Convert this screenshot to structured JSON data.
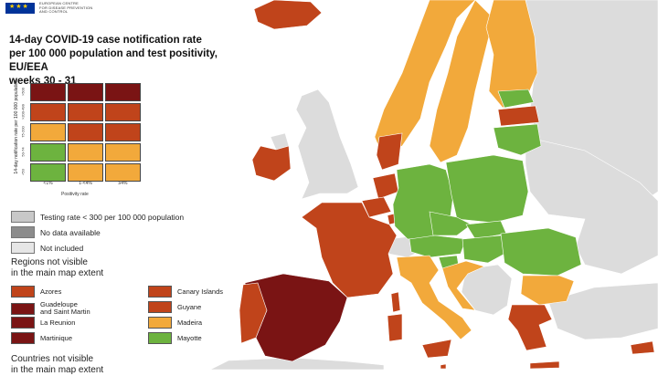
{
  "header": {
    "org_lines": [
      "EUROPEAN CENTRE",
      "FOR DISEASE PREVENTION",
      "AND CONTROL"
    ],
    "title_lines": [
      "14-day COVID-19 case notification rate",
      "per 100 000 population and test positivity, EU/EEA",
      "weeks 30 - 31"
    ]
  },
  "colors": {
    "dark_red": "#7a1414",
    "red": "#c0441b",
    "orange": "#f2a93b",
    "green": "#6db33f",
    "grey_testing": "#c8c8c8",
    "grey_nodata": "#8c8c8c",
    "grey_notincluded": "#e6e6e6",
    "sea": "#ffffff",
    "non_eu": "#dcdcdc"
  },
  "matrix": {
    "y_axis_label": "14-day notification rate per 100 000 population",
    "row_labels": [
      ">500",
      ">200-499",
      "75-200",
      "50-74",
      "<50"
    ],
    "col_labels": [
      "<1%",
      "1-<4%",
      "≥4%"
    ],
    "x_axis_label": "Positivity rate",
    "cells": [
      [
        "dark_red",
        "dark_red",
        "dark_red"
      ],
      [
        "red",
        "red",
        "red"
      ],
      [
        "orange",
        "red",
        "red"
      ],
      [
        "green",
        "orange",
        "orange"
      ],
      [
        "green",
        "orange",
        "orange"
      ]
    ]
  },
  "legend": [
    {
      "label": "Testing rate < 300 per 100 000 population",
      "color": "grey_testing"
    },
    {
      "label": "No data available",
      "color": "grey_nodata"
    },
    {
      "label": "Not included",
      "color": "grey_notincluded"
    }
  ],
  "regions_heading": "Regions not visible\nin the main map extent",
  "regions": [
    {
      "label": "Azores",
      "color": "red"
    },
    {
      "label": "Canary Islands",
      "color": "red"
    },
    {
      "label": "Guadeloupe\nand Saint Martin",
      "color": "dark_red"
    },
    {
      "label": "Guyane",
      "color": "red"
    },
    {
      "label": "La Reunion",
      "color": "dark_red"
    },
    {
      "label": "Madeira",
      "color": "orange"
    },
    {
      "label": "Martinique",
      "color": "dark_red"
    },
    {
      "label": "Mayotte",
      "color": "green"
    }
  ],
  "countries_heading": "Countries not visible\nin the main map extent",
  "map_regions": [
    {
      "name": "iceland",
      "color": "red"
    },
    {
      "name": "ireland",
      "color": "red"
    },
    {
      "name": "northern-ireland",
      "color": "non_eu"
    },
    {
      "name": "great-britain",
      "color": "non_eu"
    },
    {
      "name": "norway",
      "color": "orange"
    },
    {
      "name": "sweden",
      "color": "orange"
    },
    {
      "name": "finland",
      "color": "orange"
    },
    {
      "name": "estonia",
      "color": "green"
    },
    {
      "name": "latvia",
      "color": "red"
    },
    {
      "name": "lithuania",
      "color": "green"
    },
    {
      "name": "denmark",
      "color": "red"
    },
    {
      "name": "netherlands",
      "color": "red"
    },
    {
      "name": "belgium",
      "color": "red"
    },
    {
      "name": "luxembourg",
      "color": "red"
    },
    {
      "name": "france",
      "color": "red"
    },
    {
      "name": "spain",
      "color": "dark_red"
    },
    {
      "name": "portugal",
      "color": "red"
    },
    {
      "name": "germany",
      "color": "green"
    },
    {
      "name": "poland",
      "color": "green"
    },
    {
      "name": "czechia",
      "color": "green"
    },
    {
      "name": "austria",
      "color": "green"
    },
    {
      "name": "switzerland",
      "color": "non_eu"
    },
    {
      "name": "slovakia",
      "color": "green"
    },
    {
      "name": "hungary",
      "color": "green"
    },
    {
      "name": "slovenia",
      "color": "green"
    },
    {
      "name": "croatia",
      "color": "orange"
    },
    {
      "name": "romania",
      "color": "green"
    },
    {
      "name": "bulgaria",
      "color": "orange"
    },
    {
      "name": "italy",
      "color": "orange"
    },
    {
      "name": "sardinia",
      "color": "red"
    },
    {
      "name": "corsica",
      "color": "red"
    },
    {
      "name": "sicily",
      "color": "red"
    },
    {
      "name": "greece",
      "color": "red"
    },
    {
      "name": "crete",
      "color": "red"
    },
    {
      "name": "cyprus",
      "color": "red"
    },
    {
      "name": "malta",
      "color": "red"
    },
    {
      "name": "balkans",
      "color": "non_eu"
    },
    {
      "name": "belarus-ukraine",
      "color": "non_eu"
    },
    {
      "name": "russia",
      "color": "non_eu"
    },
    {
      "name": "turkey",
      "color": "non_eu"
    },
    {
      "name": "north-africa",
      "color": "non_eu"
    }
  ]
}
